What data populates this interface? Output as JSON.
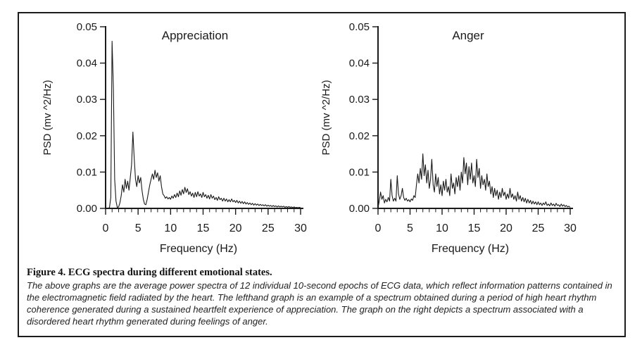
{
  "figure": {
    "caption_title": "Figure 4. ECG spectra during different emotional states.",
    "caption_body": "The above graphs are the average power spectra of 12 individual 10-second epochs of ECG data, which reflect information patterns contained in the electromagnetic field radiated by the heart. The lefthand graph is an example of a spectrum obtained during a period of high heart rhythm coherence generated during a sustained heartfelt experience of appreciation. The graph on the right depicts a spectrum associated with a disordered heart rhythm generated during feelings of anger."
  },
  "colors": {
    "trace": "#1a1a1a",
    "axis": "#1a1a1a",
    "background": "#ffffff",
    "border": "#1c1c1c"
  },
  "chart_data": [
    {
      "type": "line",
      "title": "Appreciation",
      "xlabel": "Frequency (Hz)",
      "ylabel": "PSD (mv ^2/Hz)",
      "xlim": [
        0,
        30
      ],
      "ylim": [
        0,
        0.05
      ],
      "xticks": [
        0,
        5,
        10,
        15,
        20,
        25,
        30
      ],
      "xminor_step": 1,
      "yticks": [
        0,
        0.01,
        0.02,
        0.03,
        0.04,
        0.05
      ],
      "ytick_labels": [
        "0.00",
        "0.01",
        "0.02",
        "0.03",
        "0.04",
        "0.05"
      ],
      "grid": false,
      "legend": "none",
      "series": [
        {
          "name": "Appreciation PSD",
          "x_start": 0,
          "x_step": 0.2,
          "values": [
            0,
            0.0001,
            0.0001,
            0.0002,
            0.003,
            0.046,
            0.033,
            0.008,
            0.002,
            0.0003,
            0.0004,
            0.0015,
            0.0035,
            0.0065,
            0.0045,
            0.008,
            0.0055,
            0.0075,
            0.005,
            0.0085,
            0.012,
            0.021,
            0.014,
            0.008,
            0.006,
            0.009,
            0.007,
            0.0085,
            0.005,
            0.0025,
            0.0012,
            0.001,
            0.0025,
            0.0045,
            0.0065,
            0.008,
            0.0095,
            0.008,
            0.0105,
            0.0085,
            0.0098,
            0.0075,
            0.009,
            0.006,
            0.004,
            0.0035,
            0.0028,
            0.0032,
            0.0026,
            0.003,
            0.0025,
            0.0034,
            0.0028,
            0.0038,
            0.003,
            0.0042,
            0.0032,
            0.0048,
            0.0036,
            0.0052,
            0.004,
            0.0058,
            0.0044,
            0.0054,
            0.0038,
            0.0046,
            0.0034,
            0.0042,
            0.003,
            0.0044,
            0.0032,
            0.0046,
            0.0034,
            0.004,
            0.003,
            0.0044,
            0.0032,
            0.0038,
            0.0028,
            0.0036,
            0.0026,
            0.0038,
            0.0028,
            0.0034,
            0.0024,
            0.003,
            0.0022,
            0.0032,
            0.0024,
            0.0028,
            0.002,
            0.0028,
            0.002,
            0.0026,
            0.0018,
            0.0024,
            0.0018,
            0.0026,
            0.0018,
            0.0022,
            0.0016,
            0.0022,
            0.0015,
            0.002,
            0.0014,
            0.0019,
            0.0013,
            0.0018,
            0.0012,
            0.0016,
            0.0011,
            0.0015,
            0.001,
            0.0014,
            0.0009,
            0.0013,
            0.0009,
            0.0012,
            0.0008,
            0.0011,
            0.0008,
            0.001,
            0.0007,
            0.001,
            0.0006,
            0.0009,
            0.0006,
            0.0008,
            0.0005,
            0.0008,
            0.0005,
            0.0007,
            0.0004,
            0.0007,
            0.0004,
            0.0006,
            0.0004,
            0.0006,
            0.0003,
            0.0005,
            0.0003,
            0.0005,
            0.0003,
            0.0004,
            0.0002,
            0.0004,
            0.0002,
            0.0003,
            0.0002,
            0.0003,
            0.0002
          ]
        }
      ]
    },
    {
      "type": "line",
      "title": "Anger",
      "xlabel": "Frequency (Hz)",
      "ylabel": "PSD (mv ^2/Hz)",
      "xlim": [
        0,
        30
      ],
      "ylim": [
        0,
        0.05
      ],
      "xticks": [
        0,
        5,
        10,
        15,
        20,
        25,
        30
      ],
      "xminor_step": 1,
      "yticks": [
        0,
        0.01,
        0.02,
        0.03,
        0.04,
        0.05
      ],
      "ytick_labels": [
        "0.00",
        "0.01",
        "0.02",
        "0.03",
        "0.04",
        "0.05"
      ],
      "grid": false,
      "legend": "none",
      "series": [
        {
          "name": "Anger PSD",
          "x_start": 0,
          "x_step": 0.2,
          "values": [
            0.0002,
            0.002,
            0.0045,
            0.0025,
            0.0035,
            0.0015,
            0.0025,
            0.0018,
            0.003,
            0.002,
            0.008,
            0.0035,
            0.002,
            0.0028,
            0.002,
            0.009,
            0.004,
            0.0025,
            0.0035,
            0.0055,
            0.003,
            0.0022,
            0.0028,
            0.002,
            0.0024,
            0.0018,
            0.0026,
            0.0022,
            0.0035,
            0.003,
            0.0065,
            0.0095,
            0.007,
            0.011,
            0.008,
            0.015,
            0.009,
            0.012,
            0.007,
            0.0105,
            0.0055,
            0.008,
            0.0135,
            0.0065,
            0.0045,
            0.0095,
            0.006,
            0.0085,
            0.004,
            0.0065,
            0.0035,
            0.0075,
            0.005,
            0.008,
            0.0045,
            0.006,
            0.0035,
            0.0095,
            0.0055,
            0.007,
            0.004,
            0.0085,
            0.006,
            0.009,
            0.005,
            0.01,
            0.007,
            0.014,
            0.0095,
            0.0125,
            0.0065,
            0.0115,
            0.008,
            0.0125,
            0.007,
            0.009,
            0.006,
            0.0135,
            0.0085,
            0.011,
            0.0055,
            0.009,
            0.0065,
            0.008,
            0.005,
            0.0095,
            0.006,
            0.0075,
            0.004,
            0.006,
            0.003,
            0.0055,
            0.0035,
            0.005,
            0.0025,
            0.0045,
            0.003,
            0.0055,
            0.0035,
            0.0045,
            0.0025,
            0.004,
            0.0028,
            0.0055,
            0.003,
            0.004,
            0.0025,
            0.0035,
            0.002,
            0.0045,
            0.0025,
            0.0035,
            0.002,
            0.003,
            0.0018,
            0.0028,
            0.0015,
            0.0025,
            0.0015,
            0.0022,
            0.0012,
            0.002,
            0.0012,
            0.0018,
            0.001,
            0.0018,
            0.001,
            0.0015,
            0.0008,
            0.0015,
            0.001,
            0.0018,
            0.0008,
            0.0012,
            0.0007,
            0.0015,
            0.0008,
            0.0012,
            0.0006,
            0.0014,
            0.0008,
            0.001,
            0.0005,
            0.0012,
            0.0006,
            0.001,
            0.0005,
            0.0008,
            0.0004,
            0.0006,
            0.0003
          ]
        }
      ]
    }
  ]
}
